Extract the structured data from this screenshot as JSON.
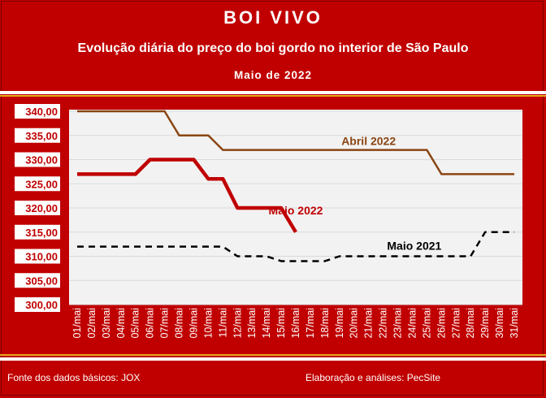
{
  "header": {
    "title": "BOI VIVO",
    "subtitle": "Evolução diária do preço do boi gordo no interior de São Paulo",
    "period": "Maio de 2022"
  },
  "footer": {
    "source": "Fonte dos dados básicos: JOX",
    "credits": "Elaboração e análises: PecSite"
  },
  "colors": {
    "background": "#c00000",
    "plot_area": "#f2f2f2",
    "abril_2022": "#8b4513",
    "maio_2022": "#c00000",
    "maio_2021": "#000000"
  },
  "chart_data": {
    "type": "line",
    "title": "",
    "xlabel": "",
    "ylabel": "",
    "ylim": [
      300,
      340
    ],
    "y_ticks": [
      "300,00",
      "305,00",
      "310,00",
      "315,00",
      "320,00",
      "325,00",
      "330,00",
      "335,00",
      "340,00"
    ],
    "grid": true,
    "categories": [
      "01/mai",
      "02/mai",
      "03/mai",
      "04/mai",
      "05/mai",
      "06/mai",
      "07/mai",
      "08/mai",
      "09/mai",
      "10/mai",
      "11/mai",
      "12/mai",
      "13/mai",
      "14/mai",
      "15/mai",
      "16/mai",
      "17/mai",
      "18/mai",
      "19/mai",
      "20/mai",
      "21/mai",
      "22/mai",
      "23/mai",
      "24/mai",
      "25/mai",
      "26/mai",
      "27/mai",
      "28/mai",
      "29/mai",
      "30/mai",
      "31/mai"
    ],
    "series": [
      {
        "name": "Abril 2022",
        "color": "#8b4513",
        "style": "solid",
        "values": [
          340,
          340,
          340,
          340,
          340,
          340,
          340,
          335,
          335,
          335,
          332,
          332,
          332,
          332,
          332,
          332,
          332,
          332,
          332,
          332,
          332,
          332,
          332,
          332,
          332,
          327,
          327,
          327,
          327,
          327,
          327
        ]
      },
      {
        "name": "Maio 2022",
        "color": "#c00000",
        "style": "solid-thick",
        "values": [
          327,
          327,
          327,
          327,
          327,
          330,
          330,
          330,
          330,
          326,
          326,
          320,
          320,
          320,
          320,
          315,
          null,
          null,
          null,
          null,
          null,
          null,
          null,
          null,
          null,
          null,
          null,
          null,
          null,
          null,
          null
        ]
      },
      {
        "name": "Maio 2021",
        "color": "#000000",
        "style": "dashed",
        "values": [
          312,
          312,
          312,
          312,
          312,
          312,
          312,
          312,
          312,
          312,
          312,
          310,
          310,
          310,
          309,
          309,
          309,
          309,
          310,
          310,
          310,
          310,
          310,
          310,
          310,
          310,
          310,
          310,
          315,
          315,
          315
        ]
      }
    ],
    "labels": [
      {
        "series": "Abril 2022",
        "text": "Abril 2022"
      },
      {
        "series": "Maio 2022",
        "text": "Maio 2022"
      },
      {
        "series": "Maio 2021",
        "text": "Maio 2021"
      }
    ]
  }
}
